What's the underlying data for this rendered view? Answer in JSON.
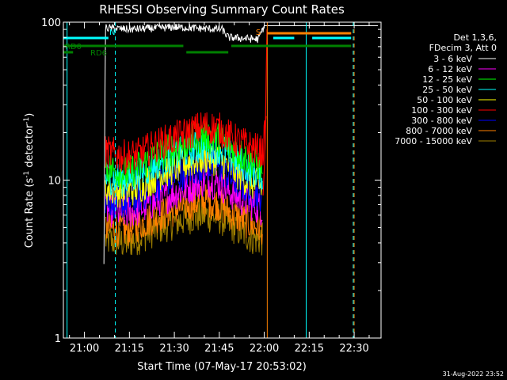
{
  "chart_data": {
    "type": "line",
    "title": "RHESSI Observing Summary Count Rates",
    "xlabel": "Start Time (07-May-17 20:53:02)",
    "ylabel_main": "Count Rate (s",
    "ylabel_sup": "-1",
    "ylabel_mid": " detector",
    "ylabel_end": ")",
    "y_scale": "log",
    "ylim": [
      1,
      100
    ],
    "y_ticks": [
      {
        "value": 1,
        "label": "1"
      },
      {
        "value": 10,
        "label": "10"
      },
      {
        "value": 100,
        "label": "100"
      }
    ],
    "xlim_minutes": [
      -7.03,
      98.97
    ],
    "x_ticks": [
      {
        "minute": 0,
        "label": "21:00"
      },
      {
        "minute": 15,
        "label": "21:15"
      },
      {
        "minute": 30,
        "label": "21:30"
      },
      {
        "minute": 45,
        "label": "21:45"
      },
      {
        "minute": 60,
        "label": "22:00"
      },
      {
        "minute": 75,
        "label": "22:15"
      },
      {
        "minute": 90,
        "label": "22:30"
      }
    ],
    "legend_header": [
      "Det 1,3,6,",
      "FDecim 3, Att 0"
    ],
    "legend_position": "right",
    "series": [
      {
        "name": "3 - 6 keV",
        "color": "#ffffff"
      },
      {
        "name": "6 - 12 keV",
        "color": "#ff00ff"
      },
      {
        "name": "12 - 25 keV",
        "color": "#00ff00"
      },
      {
        "name": "25 - 50 keV",
        "color": "#00ffff"
      },
      {
        "name": "50 - 100 keV",
        "color": "#ffff00"
      },
      {
        "name": "100 - 300 keV",
        "color": "#ff0000"
      },
      {
        "name": "300 - 800 keV",
        "color": "#0000ff"
      },
      {
        "name": "800 - 7000 keV",
        "color": "#ff8000"
      },
      {
        "name": "7000 - 15000 keV",
        "color": "#a08000"
      }
    ],
    "profiles": [
      {
        "series": "3 - 6 keV",
        "points": [
          [
            6.5,
            3
          ],
          [
            7,
            92
          ],
          [
            15,
            90
          ],
          [
            30,
            93
          ],
          [
            46,
            90
          ],
          [
            48,
            80
          ],
          [
            58,
            78
          ],
          [
            60,
            95
          ],
          [
            98,
            95
          ]
        ]
      },
      {
        "series": "100 - 300 keV",
        "points": [
          [
            7,
            15
          ],
          [
            14,
            14
          ],
          [
            18,
            14.5
          ],
          [
            25,
            17
          ],
          [
            35,
            20
          ],
          [
            40,
            22
          ],
          [
            45,
            21
          ],
          [
            50,
            18
          ],
          [
            56,
            16
          ],
          [
            59.5,
            15
          ],
          [
            60.3,
            20
          ],
          [
            60.8,
            22
          ]
        ]
      },
      {
        "series": "12 - 25 keV",
        "points": [
          [
            7,
            12
          ],
          [
            14,
            11
          ],
          [
            18,
            12
          ],
          [
            25,
            14.5
          ],
          [
            35,
            17.5
          ],
          [
            40,
            19
          ],
          [
            45,
            18
          ],
          [
            50,
            15.5
          ],
          [
            56,
            13
          ],
          [
            59.5,
            12
          ]
        ]
      },
      {
        "series": "25 - 50 keV",
        "points": [
          [
            7,
            10.5
          ],
          [
            14,
            10
          ],
          [
            18,
            11
          ],
          [
            25,
            13
          ],
          [
            35,
            15.5
          ],
          [
            40,
            16.5
          ],
          [
            45,
            16
          ],
          [
            50,
            13.5
          ],
          [
            56,
            11.5
          ],
          [
            59.5,
            11
          ]
        ]
      },
      {
        "series": "50 - 100 keV",
        "points": [
          [
            7,
            8.8
          ],
          [
            14,
            8.5
          ],
          [
            18,
            9
          ],
          [
            25,
            11
          ],
          [
            35,
            13
          ],
          [
            40,
            14
          ],
          [
            45,
            13.5
          ],
          [
            50,
            11.5
          ],
          [
            56,
            9.5
          ],
          [
            59.5,
            9
          ]
        ]
      },
      {
        "series": "300 - 800 keV",
        "points": [
          [
            7,
            7.5
          ],
          [
            14,
            7.2
          ],
          [
            18,
            7.8
          ],
          [
            25,
            9.5
          ],
          [
            35,
            11.5
          ],
          [
            40,
            12.5
          ],
          [
            45,
            12
          ],
          [
            50,
            10
          ],
          [
            56,
            8.5
          ],
          [
            59.5,
            8
          ]
        ]
      },
      {
        "series": "6 - 12 keV",
        "points": [
          [
            7,
            6.5
          ],
          [
            14,
            6.2
          ],
          [
            18,
            6.5
          ],
          [
            25,
            7.5
          ],
          [
            35,
            9
          ],
          [
            40,
            10
          ],
          [
            45,
            9.5
          ],
          [
            50,
            8
          ],
          [
            56,
            7
          ],
          [
            59.5,
            6.5
          ]
        ]
      },
      {
        "series": "800 - 7000 keV",
        "points": [
          [
            7,
            5
          ],
          [
            14,
            4.8
          ],
          [
            18,
            5.2
          ],
          [
            25,
            6
          ],
          [
            35,
            7
          ],
          [
            40,
            7.5
          ],
          [
            45,
            7
          ],
          [
            50,
            6
          ],
          [
            56,
            5.2
          ],
          [
            59.5,
            5
          ]
        ]
      },
      {
        "series": "7000 - 15000 keV",
        "points": [
          [
            7,
            4.2
          ],
          [
            14,
            4
          ],
          [
            18,
            4.3
          ],
          [
            25,
            5
          ],
          [
            35,
            5.8
          ],
          [
            40,
            6
          ],
          [
            45,
            5.8
          ],
          [
            50,
            5
          ],
          [
            56,
            4.3
          ],
          [
            59.5,
            4.2
          ]
        ]
      }
    ],
    "flag_bars": [
      {
        "label": "",
        "color": "#00ffff",
        "segments": [
          [
            -7,
            8
          ],
          [
            63,
            70
          ],
          [
            76,
            89
          ]
        ]
      },
      {
        "label": "",
        "color": "#ff8000",
        "segments": [
          [
            61,
            89
          ]
        ]
      },
      {
        "label": "RD0",
        "color": "#008000",
        "segments": [
          [
            -7,
            -3
          ],
          [
            -4,
            33
          ],
          [
            49,
            89
          ]
        ]
      },
      {
        "label": "RD6",
        "color": "#008000",
        "segments": [
          [
            -7,
            -3.8
          ],
          [
            34,
            48
          ]
        ]
      }
    ],
    "flag_markers": [
      {
        "label": "N",
        "color": "#00ffff",
        "minute": 9.3
      },
      {
        "label": "S",
        "color": "#ff8000",
        "minute": 58
      }
    ],
    "vertical_lines": [
      {
        "minute": -5.8,
        "color": "#00ffff",
        "dashed": false
      },
      {
        "minute": 10.3,
        "color": "#00ffff",
        "dashed": true
      },
      {
        "minute": 61,
        "color": "#ff8000",
        "dashed": false
      },
      {
        "minute": 74,
        "color": "#00ffff",
        "dashed": false
      },
      {
        "minute": 89.7,
        "color": "#00ffff",
        "dashed": true
      },
      {
        "minute": 90,
        "color": "#ff8000",
        "dashed": true
      }
    ]
  },
  "footer": {
    "timestamp": "31-Aug-2022 23:52"
  }
}
